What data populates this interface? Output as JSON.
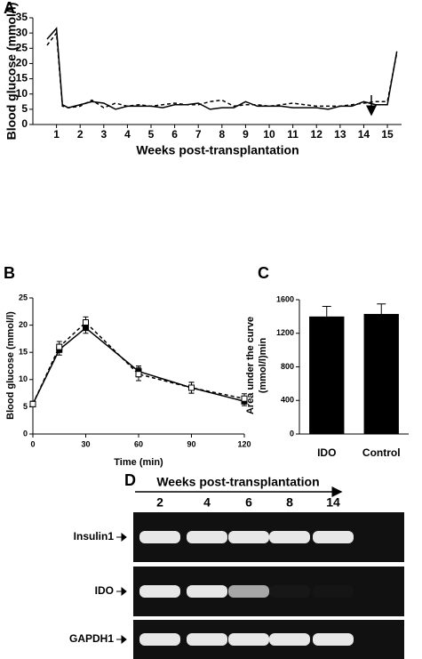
{
  "chart_data": [
    {
      "type": "line",
      "panel_label": "A",
      "x_label": "Weeks post-transplantation",
      "y_label": "Blood glucose (mmol/l)",
      "x": [
        0.6,
        1,
        1.25,
        1.5,
        2,
        2.5,
        3,
        3.5,
        4,
        4.5,
        5,
        5.5,
        6,
        6.5,
        7,
        7.5,
        8,
        8.5,
        9,
        9.5,
        10,
        10.5,
        11,
        11.5,
        12,
        12.5,
        13,
        13.5,
        14,
        14.5,
        15,
        15.4
      ],
      "series": [
        {
          "style": "solid",
          "color": "#000000",
          "values": [
            28,
            31.5,
            6.5,
            5.5,
            6.5,
            7.5,
            7,
            5,
            6,
            6,
            6,
            5.5,
            6.5,
            6.5,
            7,
            5,
            5.5,
            5.5,
            7.5,
            6,
            6,
            6,
            5.5,
            5.5,
            5.5,
            5,
            6,
            6,
            7.5,
            6.5,
            6.5,
            24
          ]
        },
        {
          "style": "dashed",
          "color": "#000000",
          "values": [
            26,
            30,
            6,
            5.5,
            6,
            8,
            5.5,
            7,
            6,
            6.5,
            6,
            6.5,
            7,
            6.5,
            6.5,
            7.5,
            8,
            6,
            6.5,
            6.5,
            6,
            6.5,
            7,
            6.5,
            6,
            6,
            6,
            6.5,
            7,
            7.5,
            7.5,
            23.5
          ]
        }
      ],
      "xlim": [
        0,
        15.6
      ],
      "xticks": [
        1,
        2,
        3,
        4,
        5,
        6,
        7,
        8,
        9,
        10,
        11,
        12,
        13,
        14,
        15
      ],
      "ylim": [
        0,
        35
      ],
      "yticks": [
        0,
        5,
        10,
        15,
        20,
        25,
        30,
        35
      ]
    },
    {
      "type": "line",
      "panel_label": "B",
      "x_label": "Time (min)",
      "y_label": "Blood glucose (mmol/l)",
      "x": [
        0,
        15,
        30,
        60,
        90,
        120
      ],
      "series": [
        {
          "style": "solid",
          "marker": "filled",
          "color": "#000000",
          "values": [
            5.5,
            15.5,
            19.5,
            11.5,
            8.5,
            6
          ],
          "errors": [
            0.5,
            1,
            1,
            1,
            1,
            0.8
          ]
        },
        {
          "style": "dashed",
          "marker": "open",
          "color": "#000000",
          "values": [
            5.5,
            16,
            20.5,
            11,
            8.5,
            6.5
          ],
          "errors": [
            0.5,
            1,
            1,
            1.2,
            1,
            0.9
          ]
        }
      ],
      "xlim": [
        0,
        120
      ],
      "xticks": [
        0,
        30,
        60,
        90,
        120
      ],
      "ylim": [
        0,
        25
      ],
      "yticks": [
        0,
        5,
        10,
        15,
        20,
        25
      ]
    },
    {
      "type": "bar",
      "panel_label": "C",
      "y_label": [
        "Area under the curve",
        "(mmol/l)min"
      ],
      "categories": [
        "IDO",
        "Control"
      ],
      "values": [
        1400,
        1430
      ],
      "errors": [
        120,
        120
      ],
      "color": "#000000",
      "ylim": [
        0,
        1600
      ],
      "yticks": [
        0,
        400,
        800,
        1200,
        1600
      ]
    }
  ],
  "gel": {
    "panel_label": "D",
    "title": "Weeks post-transplantation",
    "lanes": [
      "2",
      "4",
      "6",
      "8",
      "14"
    ],
    "rows": [
      "Insulin1",
      "IDO",
      "GAPDH1"
    ]
  }
}
